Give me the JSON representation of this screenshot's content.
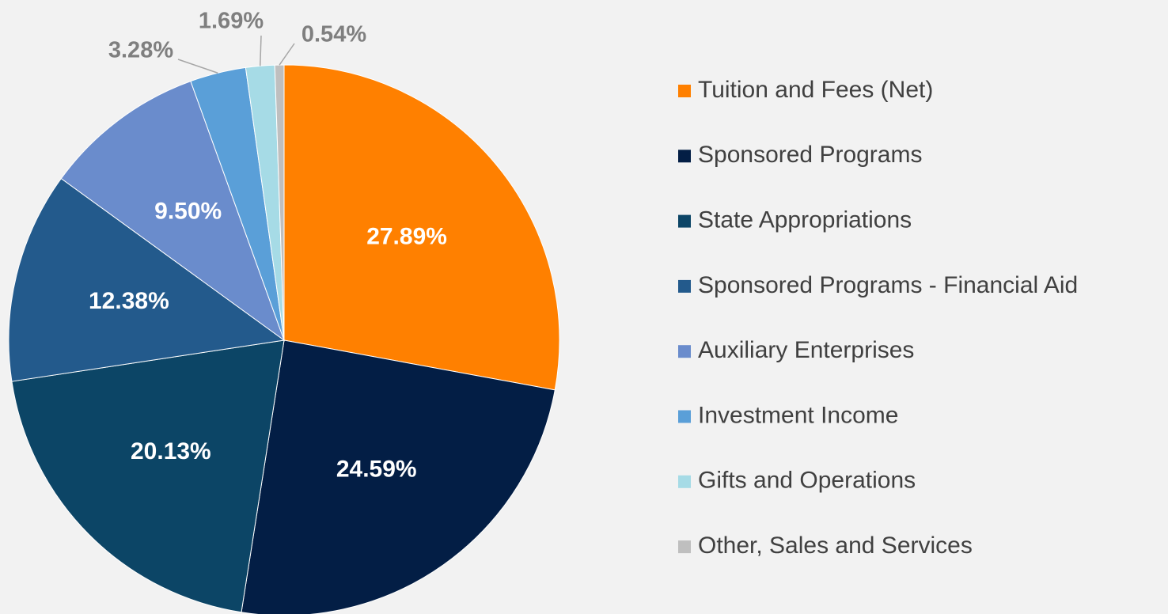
{
  "chart_data": {
    "type": "pie",
    "categories": [
      "Tuition and Fees (Net)",
      "Sponsored Programs",
      "State Appropriations",
      "Sponsored Programs - Financial Aid",
      "Auxiliary Enterprises",
      "Investment Income",
      "Gifts and Operations",
      "Other, Sales and Services"
    ],
    "values": [
      27.89,
      24.59,
      20.13,
      12.38,
      9.5,
      3.28,
      1.69,
      0.54
    ],
    "value_labels": [
      "27.89%",
      "24.59%",
      "20.13%",
      "12.38%",
      "9.50%",
      "3.28%",
      "1.69%",
      "0.54%"
    ],
    "colors": [
      "#ff8000",
      "#031e45",
      "#0c4566",
      "#235a8c",
      "#6a8ccc",
      "#5a9fd8",
      "#a6dbe6",
      "#bfbfbf"
    ],
    "legend": "right"
  }
}
